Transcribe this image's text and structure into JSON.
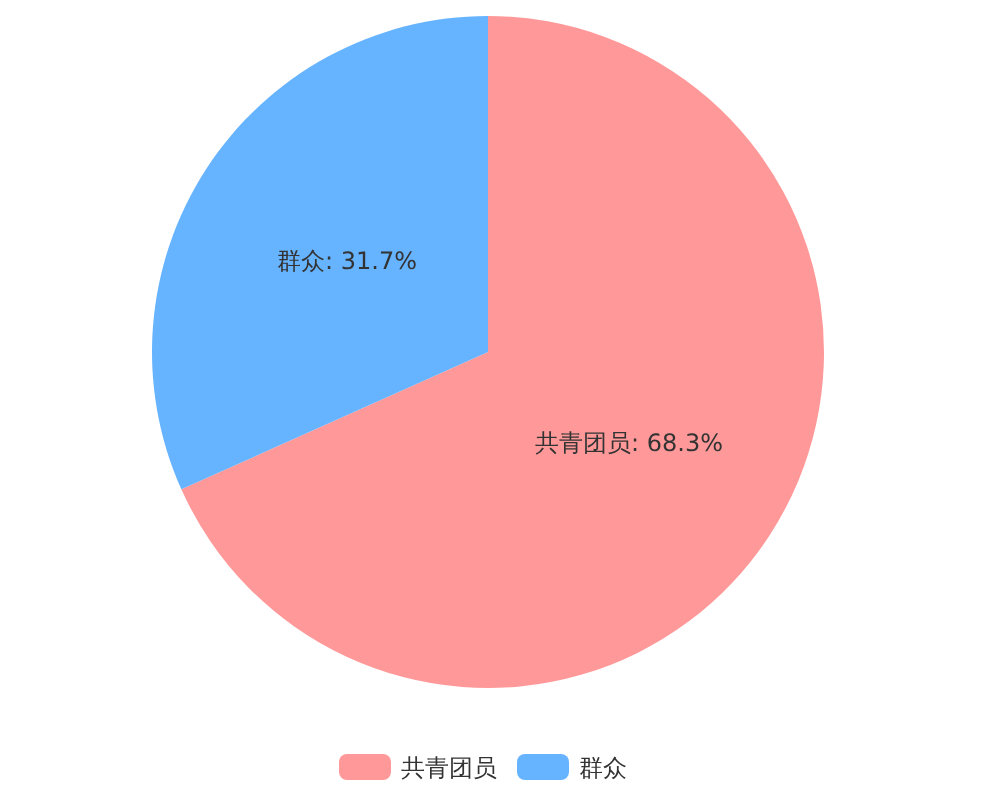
{
  "chart_data": {
    "type": "pie",
    "categories": [
      "共青团员",
      "群众"
    ],
    "values": [
      68.3,
      31.7
    ],
    "colors": [
      "#ff9999",
      "#66b3ff"
    ],
    "value_labels": [
      "共青团员: 68.3%",
      "群众: 31.7%"
    ],
    "legend": "bottom"
  }
}
